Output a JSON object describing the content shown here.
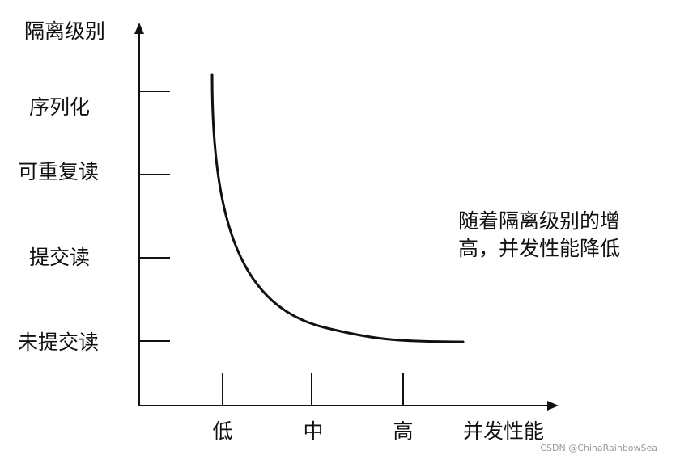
{
  "y_axis": {
    "title": "隔离级别",
    "ticks": [
      "序列化",
      "可重复读",
      "提交读",
      "未提交读"
    ]
  },
  "x_axis": {
    "title": "并发性能",
    "ticks": [
      "低",
      "中",
      "高"
    ]
  },
  "annotation": {
    "lines": [
      "随着隔离级别的增",
      "高，并发性能降低"
    ]
  },
  "watermark": "CSDN @ChinaRainbowSea",
  "colors": {
    "ink": "#111111",
    "watermark": "#9a9a9a"
  }
}
